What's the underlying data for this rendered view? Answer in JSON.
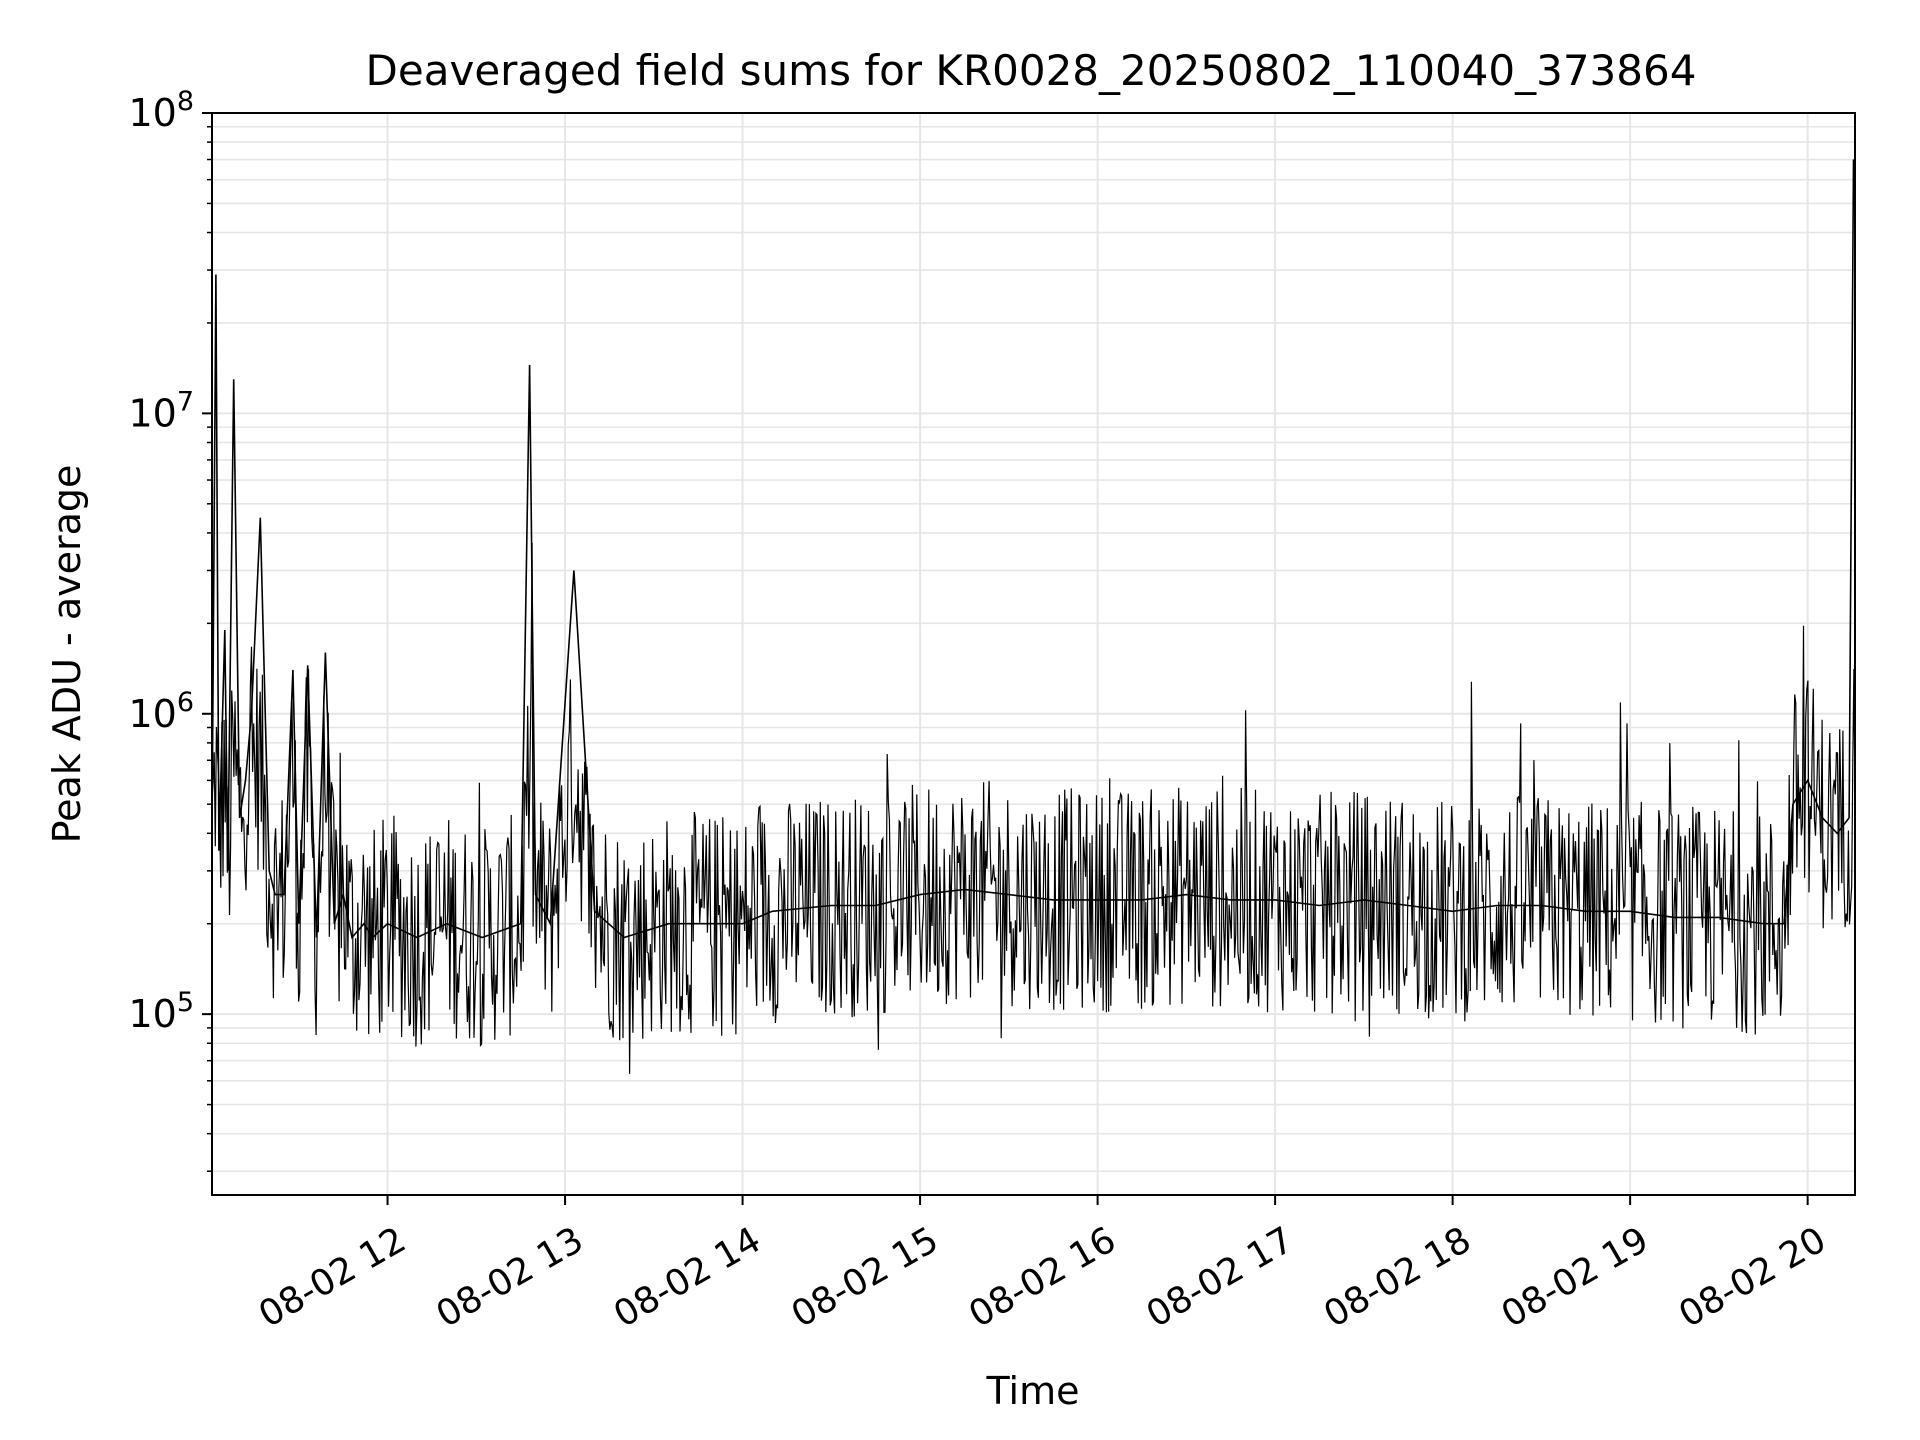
{
  "chart_data": {
    "type": "line",
    "title": "Deaveraged field sums for KR0028_20250802_110040_373864",
    "xlabel": "Time",
    "ylabel": "Peak ADU - average",
    "y_scale": "log",
    "grid": true,
    "legend": "none",
    "line_color": "#000000",
    "grid_color": "#e6e6e6",
    "xlim": [
      "2025-08-02 11:00:40",
      "2025-08-02 20:16:00"
    ],
    "ylim": [
      25000,
      100000000
    ],
    "x_ticks": [
      {
        "label": "08-02 12",
        "time": "2025-08-02 12:00"
      },
      {
        "label": "08-02 13",
        "time": "2025-08-02 13:00"
      },
      {
        "label": "08-02 14",
        "time": "2025-08-02 14:00"
      },
      {
        "label": "08-02 15",
        "time": "2025-08-02 15:00"
      },
      {
        "label": "08-02 16",
        "time": "2025-08-02 16:00"
      },
      {
        "label": "08-02 17",
        "time": "2025-08-02 17:00"
      },
      {
        "label": "08-02 18",
        "time": "2025-08-02 18:00"
      },
      {
        "label": "08-02 19",
        "time": "2025-08-02 19:00"
      },
      {
        "label": "08-02 20",
        "time": "2025-08-02 20:00"
      }
    ],
    "y_ticks": [
      {
        "base": "10",
        "exp": "5",
        "value": 100000
      },
      {
        "base": "10",
        "exp": "6",
        "value": 1000000
      },
      {
        "base": "10",
        "exp": "7",
        "value": 10000000
      },
      {
        "base": "10",
        "exp": "8",
        "value": 100000000
      }
    ],
    "series": [
      {
        "x": [
          "2025-08-02 11:00:40",
          "2025-08-02 11:02:00",
          "2025-08-02 11:03:00",
          "2025-08-02 11:05:00",
          "2025-08-02 11:06:00",
          "2025-08-02 11:08:00",
          "2025-08-02 11:10:00",
          "2025-08-02 11:12:00",
          "2025-08-02 11:14:00",
          "2025-08-02 11:17:00",
          "2025-08-02 11:20:00",
          "2025-08-02 11:22:00",
          "2025-08-02 11:25:00",
          "2025-08-02 11:28:00",
          "2025-08-02 11:30:00",
          "2025-08-02 11:33:00",
          "2025-08-02 11:36:00",
          "2025-08-02 11:39:00",
          "2025-08-02 11:42:00",
          "2025-08-02 11:45:00",
          "2025-08-02 11:48:00",
          "2025-08-02 11:52:00",
          "2025-08-02 11:55:00",
          "2025-08-02 12:00:00",
          "2025-08-02 12:10:00",
          "2025-08-02 12:20:00",
          "2025-08-02 12:32:00",
          "2025-08-02 12:45:00",
          "2025-08-02 12:48:00",
          "2025-08-02 12:50:00",
          "2025-08-02 12:55:00",
          "2025-08-02 13:03:00",
          "2025-08-02 13:10:00",
          "2025-08-02 13:20:00",
          "2025-08-02 13:35:00",
          "2025-08-02 13:50:00",
          "2025-08-02 14:00:00",
          "2025-08-02 14:10:00",
          "2025-08-02 14:30:00",
          "2025-08-02 14:45:00",
          "2025-08-02 15:00:00",
          "2025-08-02 15:15:00",
          "2025-08-02 15:30:00",
          "2025-08-02 15:45:00",
          "2025-08-02 16:00:00",
          "2025-08-02 16:15:00",
          "2025-08-02 16:30:00",
          "2025-08-02 16:45:00",
          "2025-08-02 17:00:00",
          "2025-08-02 17:15:00",
          "2025-08-02 17:30:00",
          "2025-08-02 17:45:00",
          "2025-08-02 18:00:00",
          "2025-08-02 18:15:00",
          "2025-08-02 18:30:00",
          "2025-08-02 18:45:00",
          "2025-08-02 19:00:00",
          "2025-08-02 19:15:00",
          "2025-08-02 19:30:00",
          "2025-08-02 19:45:00",
          "2025-08-02 19:52:00",
          "2025-08-02 19:55:00",
          "2025-08-02 20:00:00",
          "2025-08-02 20:05:00",
          "2025-08-02 20:10:00",
          "2025-08-02 20:14:00",
          "2025-08-02 20:15:30"
        ],
        "values": [
          400000,
          29000000,
          350000,
          1900000,
          300000,
          13000000,
          450000,
          600000,
          1000000,
          4500000,
          300000,
          250000,
          250000,
          1400000,
          200000,
          1450000,
          180000,
          1600000,
          200000,
          250000,
          180000,
          200000,
          180000,
          200000,
          180000,
          200000,
          180000,
          200000,
          14500000,
          250000,
          200000,
          3000000,
          220000,
          180000,
          200000,
          200000,
          200000,
          220000,
          230000,
          230000,
          250000,
          260000,
          250000,
          240000,
          240000,
          240000,
          250000,
          240000,
          240000,
          230000,
          240000,
          230000,
          220000,
          230000,
          230000,
          220000,
          220000,
          210000,
          210000,
          200000,
          200000,
          500000,
          600000,
          450000,
          400000,
          450000,
          70000000
        ]
      }
    ]
  }
}
